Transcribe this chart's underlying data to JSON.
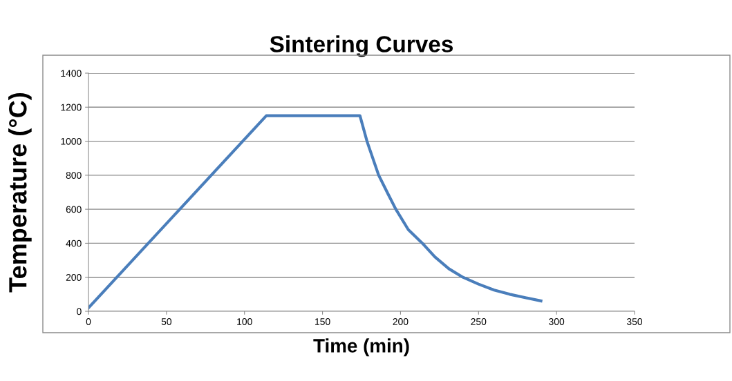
{
  "chart_data": {
    "type": "line",
    "title": "Sintering Curves",
    "xlabel": "Time (min)",
    "ylabel": "Temperature (°C)",
    "series": [
      {
        "color": "#4a7ebb",
        "x": [
          0,
          57,
          114,
          174,
          178.5,
          186,
          192,
          197,
          205,
          214,
          222,
          231,
          240,
          250,
          260,
          270,
          280,
          290
        ],
        "values": [
          20,
          585,
          1150,
          1150,
          1000,
          800,
          690,
          600,
          480,
          400,
          320,
          250,
          200,
          160,
          125,
          100,
          80,
          61
        ]
      }
    ],
    "xlim": [
      0,
      350
    ],
    "xticks": [
      0,
      50,
      100,
      150,
      200,
      250,
      300,
      350
    ],
    "ylim": [
      0,
      1400
    ],
    "yticks": [
      0,
      200,
      400,
      600,
      800,
      1000,
      1200,
      1400
    ],
    "grid": "y",
    "legend": false,
    "marker": "none",
    "line_style": "solid"
  }
}
